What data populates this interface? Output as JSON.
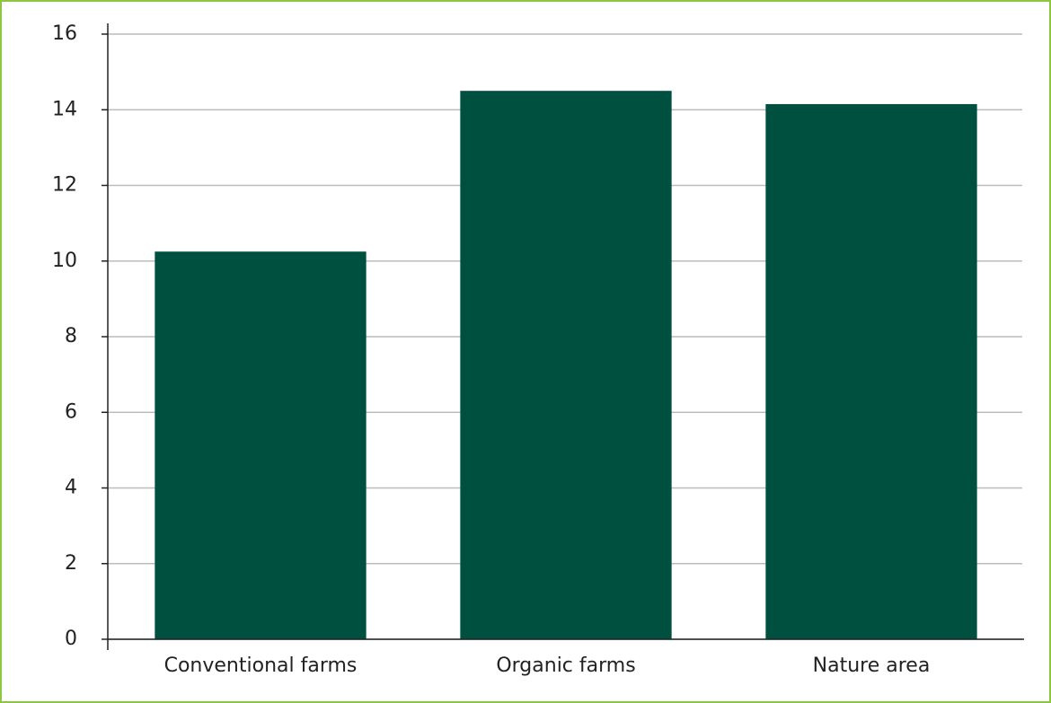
{
  "chart_data": {
    "type": "bar",
    "categories": [
      "Conventional farms",
      "Organic farms",
      "Nature area"
    ],
    "values": [
      10.25,
      14.5,
      14.15
    ],
    "color": "#00503f",
    "ylim": [
      0,
      16
    ],
    "yticks": [
      0,
      2,
      4,
      6,
      8,
      10,
      12,
      14,
      16
    ],
    "grid": true
  }
}
